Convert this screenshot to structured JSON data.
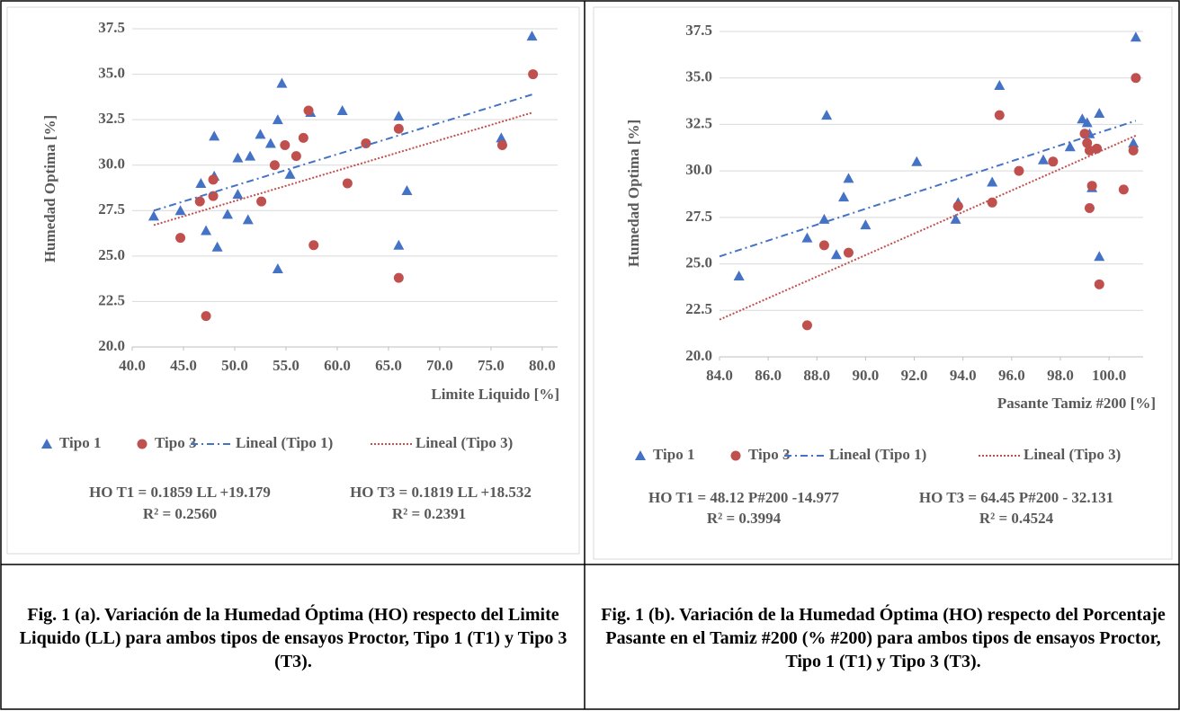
{
  "chart_data": [
    {
      "type": "scatter",
      "xlabel": "Limite Liquido [%]",
      "ylabel": "Humedad Optima [%]",
      "xlim": [
        40,
        81.5
      ],
      "ylim": [
        20,
        37.5
      ],
      "xticks": [
        {
          "value": 40,
          "label": "40.0"
        },
        {
          "value": 45,
          "label": "45.0"
        },
        {
          "value": 50,
          "label": "50.0"
        },
        {
          "value": 55,
          "label": "55.0"
        },
        {
          "value": 60,
          "label": "60.0"
        },
        {
          "value": 65,
          "label": "65.0"
        },
        {
          "value": 70,
          "label": "70.0"
        },
        {
          "value": 75,
          "label": "75.0"
        },
        {
          "value": 80,
          "label": "80.0"
        }
      ],
      "yticks": [
        {
          "value": 20,
          "label": "20.0"
        },
        22.5,
        {
          "value": 25,
          "label": "25.0"
        },
        27.5,
        {
          "value": 30,
          "label": "30.0"
        },
        32.5,
        {
          "value": 35,
          "label": "35.0"
        },
        37.5
      ],
      "grid": true,
      "series": [
        {
          "name": "Tipo 1",
          "type": "scatter",
          "marker": "triangle",
          "color": "#4472c4",
          "x": [
            42.1,
            44.7,
            46.7,
            47.2,
            48.0,
            48.0,
            48.3,
            49.3,
            50.3,
            50.3,
            51.5,
            51.3,
            52.5,
            53.5,
            54.2,
            54.2,
            54.6,
            55.4,
            57.4,
            60.5,
            66.0,
            66.0,
            66.8,
            76.0,
            79.0
          ],
          "values": [
            27.2,
            27.5,
            29.0,
            26.4,
            31.6,
            29.4,
            25.5,
            27.3,
            30.4,
            28.4,
            30.5,
            27.0,
            31.7,
            31.2,
            32.5,
            24.3,
            34.5,
            29.5,
            32.9,
            33.0,
            32.7,
            25.6,
            28.6,
            31.5,
            37.1
          ]
        },
        {
          "name": "Tipo 3",
          "type": "scatter",
          "marker": "circle",
          "color": "#c0504d",
          "x": [
            44.7,
            46.6,
            47.9,
            47.9,
            47.2,
            52.6,
            53.9,
            54.9,
            56.0,
            56.7,
            57.2,
            57.7,
            61.0,
            62.8,
            66.0,
            66.0,
            76.1,
            79.1
          ],
          "values": [
            26.0,
            28.0,
            29.2,
            28.3,
            21.7,
            28.0,
            30.0,
            31.1,
            30.5,
            31.5,
            33.0,
            25.6,
            29.0,
            31.2,
            32.0,
            23.8,
            31.1,
            35.0
          ]
        },
        {
          "name": "Lineal (Tipo 1)",
          "type": "line",
          "dash": "dashdot",
          "color": "#4472c4",
          "x": [
            42.1,
            79.1
          ],
          "values": [
            27.5,
            33.9
          ]
        },
        {
          "name": "Lineal (Tipo 3)",
          "type": "line",
          "dash": "dot",
          "color": "#c0504d",
          "x": [
            42.1,
            79.1
          ],
          "values": [
            26.7,
            32.9
          ]
        }
      ],
      "annotations": [
        "HO T1 = 0.1859 LL +19.179",
        "R² = 0.2560",
        "HO T3 = 0.1819 LL +18.532",
        "R² = 0.2391"
      ]
    },
    {
      "type": "scatter",
      "xlabel": "Pasante Tamiz #200 [%]",
      "ylabel": "Humedad Optima [%]",
      "xlim": [
        84,
        101.4
      ],
      "ylim": [
        20,
        37.5
      ],
      "xticks": [
        {
          "value": 84,
          "label": "84.0"
        },
        {
          "value": 86,
          "label": "86.0"
        },
        {
          "value": 88,
          "label": "88.0"
        },
        {
          "value": 90,
          "label": "90.0"
        },
        {
          "value": 92,
          "label": "92.0"
        },
        {
          "value": 94,
          "label": "94.0"
        },
        {
          "value": 96,
          "label": "96.0"
        },
        {
          "value": 98,
          "label": "98.0"
        },
        {
          "value": 100,
          "label": "100.0"
        }
      ],
      "yticks": [
        {
          "value": 20,
          "label": "20.0"
        },
        22.5,
        {
          "value": 25,
          "label": "25.0"
        },
        27.5,
        {
          "value": 30,
          "label": "30.0"
        },
        32.5,
        {
          "value": 35,
          "label": "35.0"
        },
        37.5
      ],
      "grid": true,
      "series": [
        {
          "name": "Tipo 1",
          "type": "scatter",
          "marker": "triangle",
          "color": "#4472c4",
          "x": [
            84.8,
            87.6,
            88.3,
            88.4,
            88.8,
            89.1,
            89.3,
            90.0,
            92.1,
            93.7,
            93.8,
            95.2,
            95.5,
            97.3,
            98.4,
            98.9,
            99.1,
            99.2,
            99.3,
            99.6,
            99.6,
            101.0,
            101.1
          ],
          "values": [
            24.35,
            26.4,
            27.4,
            33.0,
            25.5,
            28.6,
            29.6,
            27.1,
            30.5,
            27.4,
            28.3,
            29.4,
            34.6,
            30.6,
            31.3,
            32.8,
            32.6,
            32.0,
            29.1,
            33.1,
            25.4,
            31.5,
            37.2
          ]
        },
        {
          "name": "Tipo 3",
          "type": "scatter",
          "marker": "circle",
          "color": "#c0504d",
          "x": [
            87.6,
            88.3,
            89.3,
            93.8,
            95.2,
            95.5,
            96.3,
            97.7,
            99.0,
            99.1,
            99.2,
            99.3,
            99.2,
            99.5,
            99.6,
            100.6,
            101.0,
            101.1
          ],
          "values": [
            21.7,
            26.0,
            25.6,
            28.1,
            28.3,
            33.0,
            30.0,
            30.5,
            32.0,
            31.5,
            31.1,
            29.2,
            28.0,
            31.2,
            23.9,
            29.0,
            31.1,
            35.0
          ]
        },
        {
          "name": "Lineal (Tipo 1)",
          "type": "line",
          "dash": "dashdot",
          "color": "#4472c4",
          "x": [
            84,
            101.1
          ],
          "values": [
            25.4,
            32.7
          ]
        },
        {
          "name": "Lineal (Tipo 3)",
          "type": "line",
          "dash": "dot",
          "color": "#c0504d",
          "x": [
            84,
            101.1
          ],
          "values": [
            22.0,
            31.9
          ]
        }
      ],
      "annotations": [
        "HO T1 = 48.12 P#200 -14.977",
        "R² = 0.3994",
        "HO T3 = 64.45 P#200 - 32.131",
        "R² = 0.4524"
      ]
    }
  ],
  "captions": [
    "Fig. 1 (a). Variación de la Humedad Óptima (HO) respecto del Limite Liquido (LL) para ambos tipos de ensayos Proctor, Tipo 1 (T1) y Tipo 3 (T3).",
    "Fig. 1 (b). Variación de la Humedad Óptima (HO) respecto del Porcentaje Pasante en el Tamiz #200 (% #200) para ambos tipos de ensayos Proctor, Tipo 1 (T1) y Tipo 3 (T3)."
  ]
}
